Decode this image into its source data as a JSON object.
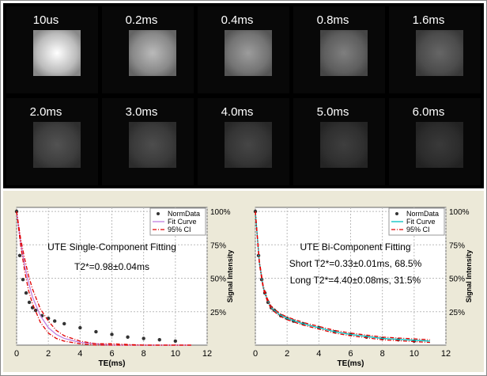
{
  "images": [
    "10us",
    "0.2ms",
    "0.4ms",
    "0.8ms",
    "1.6ms",
    "2.0ms",
    "3.0ms",
    "4.0ms",
    "5.0ms",
    "6.0ms"
  ],
  "chart_data": [
    {
      "type": "line",
      "annotations": [
        "UTE Single-Component Fitting",
        "T2*=0.98±0.04ms"
      ],
      "xlabel": "TE(ms)",
      "ylabel": "Signal Intensity",
      "xlim": [
        0,
        12
      ],
      "xticks": [
        0,
        2,
        4,
        6,
        8,
        10,
        12
      ],
      "ylim": [
        0,
        103
      ],
      "yticks": [
        {
          "value": 25,
          "label": "25%"
        },
        {
          "value": 50,
          "label": "50%"
        },
        {
          "value": 75,
          "label": "75%"
        },
        {
          "value": 100,
          "label": "100%"
        }
      ],
      "grid": true,
      "legend": "upper right",
      "series": [
        {
          "name": "NormData",
          "style": "points",
          "color": "#333333",
          "x": [
            0,
            0.2,
            0.4,
            0.6,
            0.8,
            1.0,
            1.2,
            1.6,
            2.0,
            2.4,
            3.0,
            4.0,
            5.0,
            6.0,
            7.0,
            8.0,
            9.0,
            10.0
          ],
          "values": [
            100,
            67,
            49,
            39,
            32,
            28,
            26,
            22,
            20,
            18,
            16,
            13,
            10,
            8,
            6,
            5,
            4,
            3
          ]
        },
        {
          "name": "Fit Curve",
          "style": "line",
          "color": "#c080e0",
          "x": [
            0,
            0.25,
            0.5,
            0.75,
            1,
            1.5,
            2,
            2.5,
            3,
            4,
            5,
            6,
            8,
            11
          ],
          "values": [
            100,
            77,
            60,
            47,
            36,
            22,
            13,
            8,
            5,
            2,
            1,
            0,
            0,
            0
          ]
        },
        {
          "name": "95% CI",
          "style": "band",
          "color": "#e00000",
          "x": [
            0,
            0.25,
            0.5,
            0.75,
            1,
            1.5,
            2,
            2.5,
            3,
            4,
            5,
            6,
            8,
            11
          ],
          "upper": [
            100,
            80,
            65,
            52,
            42,
            27,
            18,
            11,
            7,
            3,
            1,
            1,
            0,
            0
          ],
          "lower": [
            100,
            75,
            56,
            41,
            31,
            17,
            9,
            5,
            3,
            1,
            0,
            0,
            0,
            0
          ]
        }
      ]
    },
    {
      "type": "line",
      "annotations": [
        "UTE Bi-Component Fitting",
        "Short T2*=0.33±0.01ms, 68.5%",
        "Long T2*=4.40±0.08ms, 31.5%"
      ],
      "xlabel": "TE(ms)",
      "ylabel": "Signal Intensity",
      "xlim": [
        0,
        12
      ],
      "xticks": [
        0,
        2,
        4,
        6,
        8,
        10,
        12
      ],
      "ylim": [
        0,
        103
      ],
      "yticks": [
        {
          "value": 25,
          "label": "25%"
        },
        {
          "value": 50,
          "label": "50%"
        },
        {
          "value": 75,
          "label": "75%"
        },
        {
          "value": 100,
          "label": "100%"
        }
      ],
      "grid": true,
      "legend": "upper right",
      "series": [
        {
          "name": "NormData",
          "style": "points",
          "color": "#333333",
          "x": [
            0,
            0.2,
            0.4,
            0.6,
            0.8,
            1.0,
            1.2,
            1.6,
            2.0,
            2.4,
            3.0,
            4.0,
            5.0,
            6.0,
            7.0,
            8.0,
            9.0,
            10.0
          ],
          "values": [
            100,
            67,
            49,
            39,
            32,
            28,
            26,
            22,
            20,
            18,
            16,
            13,
            10,
            8,
            6,
            5,
            4,
            3
          ]
        },
        {
          "name": "Fit Curve",
          "style": "line",
          "color": "#00c0c0",
          "x": [
            0,
            0.25,
            0.5,
            0.75,
            1,
            1.5,
            2,
            2.5,
            3,
            4,
            5,
            6,
            8,
            11
          ],
          "values": [
            100,
            62,
            43,
            34,
            28,
            23,
            20,
            18,
            16,
            13,
            10,
            8,
            5,
            3
          ]
        },
        {
          "name": "95% CI",
          "style": "band",
          "color": "#e00000",
          "x": [
            0,
            0.25,
            0.5,
            0.75,
            1,
            1.5,
            2,
            2.5,
            3,
            4,
            5,
            6,
            8,
            11
          ],
          "upper": [
            100,
            63,
            44,
            35,
            29,
            24,
            21,
            19,
            17,
            14,
            11,
            9,
            6,
            4
          ],
          "lower": [
            100,
            61,
            42,
            33,
            27,
            22,
            19,
            17,
            15,
            12,
            9,
            7,
            4,
            2
          ]
        }
      ]
    }
  ]
}
